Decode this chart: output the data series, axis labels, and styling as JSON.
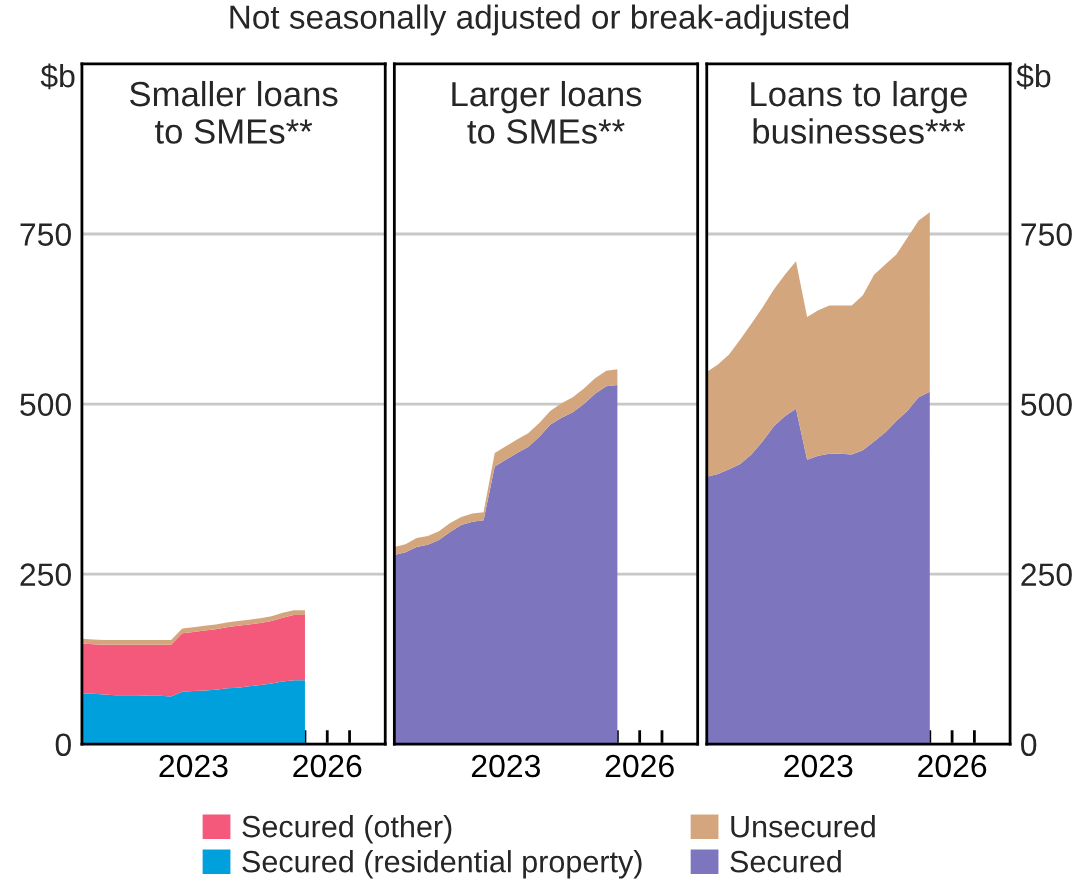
{
  "chart_data": [
    {
      "type": "area",
      "stacked": true,
      "title": "Smaller loans\nto SMEs**",
      "subtitle": "Not seasonally adjusted or break-adjusted",
      "ylabel": "$b",
      "x": [
        2021.0,
        2021.25,
        2021.5,
        2021.75,
        2022.0,
        2022.25,
        2022.5,
        2022.75,
        2023.0,
        2023.25,
        2023.5,
        2023.75,
        2024.0,
        2024.25,
        2024.5,
        2024.75,
        2025.0,
        2025.25,
        2025.5,
        2025.75,
        2026.0
      ],
      "series": [
        {
          "name": "Secured (residential property)",
          "color": "#00a0dc",
          "values": [
            74,
            74,
            73,
            72,
            72,
            72,
            71,
            71,
            70,
            77,
            78,
            79,
            80,
            82,
            83,
            85,
            87,
            89,
            92,
            94,
            94
          ]
        },
        {
          "name": "Secured (other)",
          "color": "#f4587a",
          "values": [
            74,
            73,
            73,
            74,
            74,
            74,
            75,
            75,
            76,
            86,
            87,
            88,
            89,
            90,
            91,
            91,
            91,
            92,
            94,
            96,
            96
          ]
        },
        {
          "name": "Unsecured",
          "color": "#d4a67e",
          "values": [
            7,
            7,
            7,
            7,
            7,
            7,
            7,
            7,
            7,
            7,
            7,
            7,
            7,
            7,
            7,
            7,
            7,
            7,
            7,
            7,
            7
          ]
        }
      ],
      "xlim": [
        2021,
        2027.8
      ],
      "xticks": [
        {
          "value": 2022,
          "label": null
        },
        {
          "value": 2023,
          "label": null
        },
        {
          "value": 2023.5,
          "label": "2023"
        },
        {
          "value": 2024,
          "label": null
        },
        {
          "value": 2025,
          "label": null
        },
        {
          "value": 2026,
          "label": null
        },
        {
          "value": 2026.5,
          "label": "2026"
        },
        {
          "value": 2027,
          "label": null
        }
      ],
      "ylim": [
        0,
        1000
      ],
      "yticks": [
        0,
        250,
        500,
        750
      ],
      "grid": "y",
      "legend": "bottom"
    },
    {
      "type": "area",
      "stacked": true,
      "title": "Larger loans\nto SMEs**",
      "x": [
        2021.0,
        2021.25,
        2021.5,
        2021.75,
        2022.0,
        2022.25,
        2022.5,
        2022.75,
        2023.0,
        2023.25,
        2023.5,
        2023.75,
        2024.0,
        2024.25,
        2024.5,
        2024.75,
        2025.0,
        2025.25,
        2025.5,
        2025.75,
        2026.0
      ],
      "series": [
        {
          "name": "Secured",
          "color": "#7e75bf",
          "values": [
            278,
            282,
            290,
            293,
            300,
            312,
            322,
            327,
            329,
            408,
            418,
            428,
            437,
            452,
            470,
            480,
            488,
            500,
            515,
            526,
            528
          ]
        },
        {
          "name": "Unsecured",
          "color": "#d4a67e",
          "values": [
            12,
            12,
            13,
            13,
            13,
            13,
            12,
            12,
            12,
            20,
            20,
            20,
            20,
            20,
            20,
            21,
            22,
            23,
            23,
            23,
            23
          ]
        }
      ],
      "xlim": [
        2021,
        2027.8
      ],
      "xticks": [
        {
          "value": 2022,
          "label": null
        },
        {
          "value": 2023,
          "label": null
        },
        {
          "value": 2023.5,
          "label": "2023"
        },
        {
          "value": 2024,
          "label": null
        },
        {
          "value": 2025,
          "label": null
        },
        {
          "value": 2026,
          "label": null
        },
        {
          "value": 2026.5,
          "label": "2026"
        },
        {
          "value": 2027,
          "label": null
        }
      ],
      "ylim": [
        0,
        1000
      ],
      "yticks": [
        0,
        250,
        500,
        750
      ],
      "grid": "y",
      "tick_labels": "x",
      "legend": "bottom"
    },
    {
      "type": "area",
      "stacked": true,
      "title": "Loans to large\nbusinesses***",
      "ylabel": "$b",
      "x": [
        2021.0,
        2021.25,
        2021.5,
        2021.75,
        2022.0,
        2022.25,
        2022.5,
        2022.75,
        2023.0,
        2023.25,
        2023.5,
        2023.75,
        2024.0,
        2024.25,
        2024.5,
        2024.75,
        2025.0,
        2025.25,
        2025.5,
        2025.75,
        2026.0
      ],
      "series": [
        {
          "name": "Secured",
          "color": "#7e75bf",
          "values": [
            393,
            397,
            404,
            412,
            426,
            445,
            467,
            482,
            493,
            418,
            424,
            427,
            427,
            426,
            432,
            445,
            458,
            475,
            490,
            510,
            518
          ]
        },
        {
          "name": "Unsecured",
          "color": "#d4a67e",
          "values": [
            154,
            161,
            169,
            183,
            192,
            197,
            201,
            208,
            217,
            210,
            214,
            218,
            218,
            219,
            228,
            245,
            247,
            245,
            255,
            260,
            264
          ]
        }
      ],
      "xlim": [
        2021,
        2027.8
      ],
      "xticks": [
        {
          "value": 2022,
          "label": null
        },
        {
          "value": 2023,
          "label": null
        },
        {
          "value": 2023.5,
          "label": "2023"
        },
        {
          "value": 2024,
          "label": null
        },
        {
          "value": 2025,
          "label": null
        },
        {
          "value": 2026,
          "label": null
        },
        {
          "value": 2026.5,
          "label": "2026"
        },
        {
          "value": 2027,
          "label": null
        }
      ],
      "ylim": [
        0,
        1000
      ],
      "yticks": [
        0,
        250,
        500,
        750
      ],
      "grid": "y",
      "legend": "bottom"
    }
  ]
}
